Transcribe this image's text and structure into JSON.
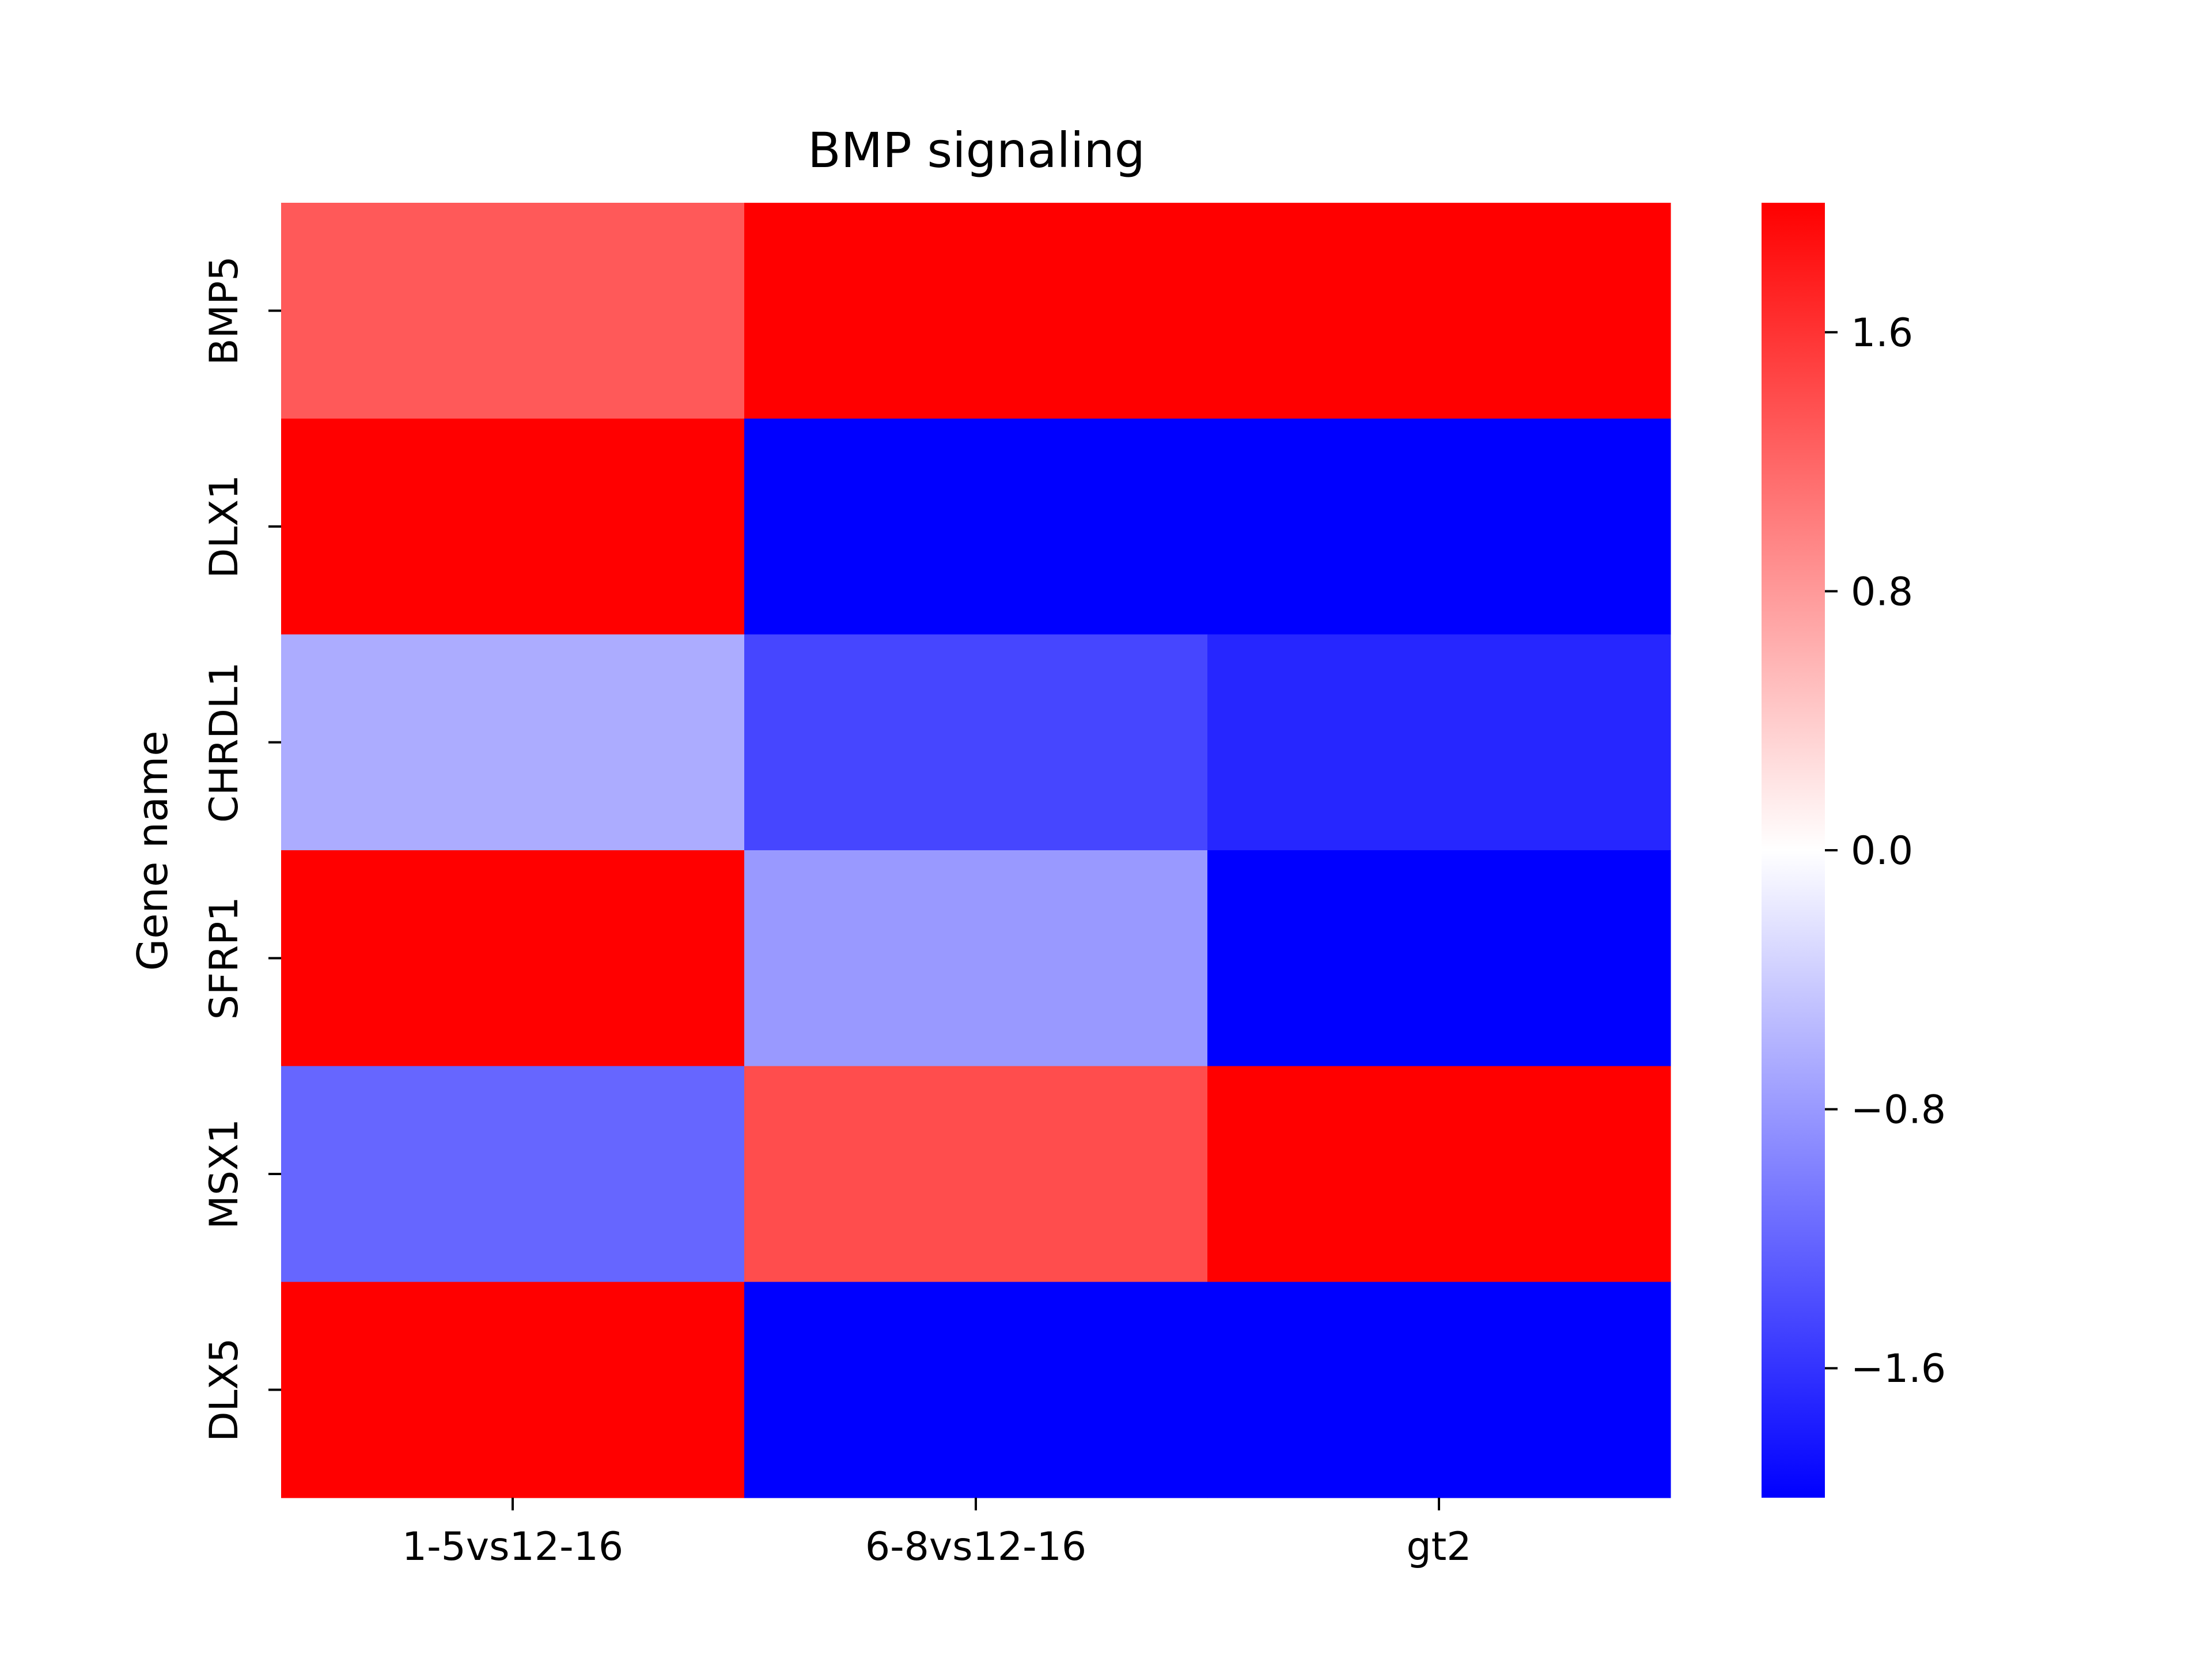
{
  "chart_data": {
    "type": "heatmap",
    "title": "BMP signaling",
    "xlabel": "",
    "ylabel": "Gene name",
    "x_categories": [
      "1-5vs12-16",
      "6-8vs12-16",
      "gt2"
    ],
    "y_categories": [
      "BMP5",
      "DLX1",
      "CHRDL1",
      "SFRP1",
      "MSX1",
      "DLX5"
    ],
    "values": [
      [
        1.3,
        2.0,
        2.0
      ],
      [
        2.0,
        -2.0,
        -2.0
      ],
      [
        -0.65,
        -1.45,
        -1.7
      ],
      [
        2.0,
        -0.8,
        -2.0
      ],
      [
        -1.2,
        1.4,
        2.0
      ],
      [
        2.0,
        -2.0,
        -2.0
      ]
    ],
    "colormap": "bwr",
    "colors": {
      "low": "#0000ff",
      "mid": "#ffffff",
      "high": "#ff0000"
    },
    "vmin": -2.0,
    "vmax": 2.0,
    "colorbar": {
      "ticks": [
        1.6,
        0.8,
        0.0,
        -0.8,
        -1.6
      ],
      "tick_labels": [
        "1.6",
        "0.8",
        "0.0",
        "−0.8",
        "−1.6"
      ]
    },
    "grid": false,
    "legend": "colorbar-right"
  }
}
